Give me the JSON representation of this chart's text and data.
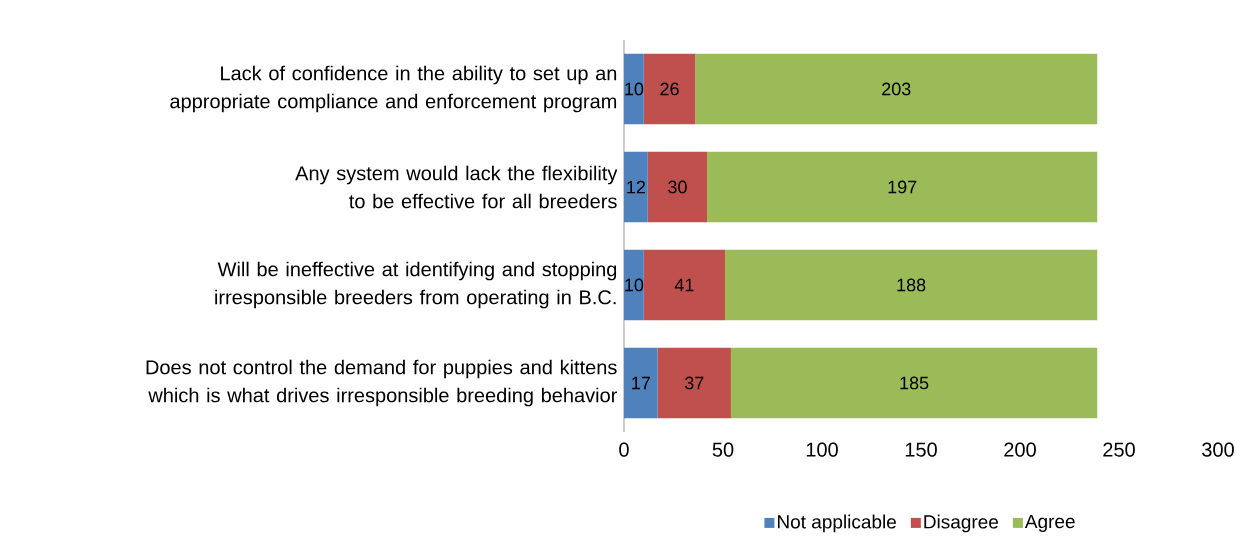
{
  "chart_data": {
    "type": "bar",
    "orientation": "horizontal",
    "stacked": true,
    "data_labels": true,
    "legend": "bottom",
    "grid": false,
    "categories": [
      "Lack of confidence in the ability to set up an appropriate compliance and enforcement program",
      "Any system would lack the flexibility to be effective for all breeders",
      "Will be ineffective at identifying and stopping irresponsible breeders from operating in B.C.",
      "Does not control the demand for puppies and kittens which is what drives irresponsible breeding behavior"
    ],
    "series": [
      {
        "name": "Not applicable",
        "color": "#4f81bd",
        "values": [
          10,
          12,
          10,
          17
        ]
      },
      {
        "name": "Disagree",
        "color": "#c0504d",
        "values": [
          26,
          30,
          41,
          37
        ]
      },
      {
        "name": "Agree",
        "color": "#9bbb59",
        "values": [
          203,
          197,
          188,
          185
        ]
      }
    ],
    "xlim": [
      0,
      300
    ],
    "xticks": [
      0,
      50,
      100,
      150,
      200,
      250,
      300
    ]
  }
}
